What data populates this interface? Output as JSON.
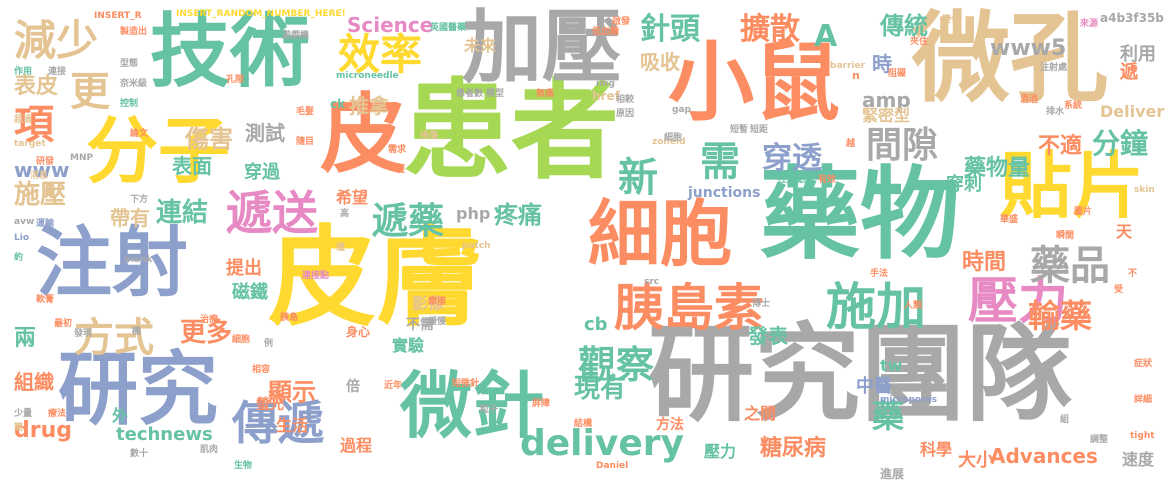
{
  "palette": {
    "gray": "#a8a8a8",
    "yellow": "#ffd92f",
    "green": "#a6d854",
    "orange": "#fc8d62",
    "blue": "#8da0cb",
    "teal": "#66c2a5",
    "tan": "#e5c494",
    "pink": "#e78ac3"
  },
  "words": [
    {
      "text": "皮膚",
      "color": "yellow"
    },
    {
      "text": "患者",
      "color": "green"
    },
    {
      "text": "研究團隊",
      "color": "gray"
    },
    {
      "text": "微孔",
      "color": "tan"
    },
    {
      "text": "藥物",
      "color": "teal"
    },
    {
      "text": "加壓",
      "color": "gray"
    },
    {
      "text": "小鼠",
      "color": "orange"
    },
    {
      "text": "技術",
      "color": "teal"
    },
    {
      "text": "研究",
      "color": "blue"
    },
    {
      "text": "細胞",
      "color": "orange"
    },
    {
      "text": "微針",
      "color": "teal"
    },
    {
      "text": "注射",
      "color": "blue"
    },
    {
      "text": "皮",
      "color": "orange"
    },
    {
      "text": "分子",
      "color": "yellow"
    },
    {
      "text": "貼片",
      "color": "yellow"
    },
    {
      "text": "胰島素",
      "color": "orange"
    },
    {
      "text": "施加",
      "color": "teal"
    },
    {
      "text": "壓力",
      "color": "pink"
    },
    {
      "text": "減少",
      "color": "tan"
    },
    {
      "text": "效率",
      "color": "yellow"
    },
    {
      "text": "遞送",
      "color": "pink"
    },
    {
      "text": "傳遞",
      "color": "blue"
    },
    {
      "text": "delivery",
      "color": "teal"
    },
    {
      "text": "新",
      "color": "teal"
    },
    {
      "text": "需",
      "color": "teal"
    },
    {
      "text": "藥品",
      "color": "gray"
    },
    {
      "text": "方式",
      "color": "tan"
    },
    {
      "text": "間隙",
      "color": "gray"
    },
    {
      "text": "觀察",
      "color": "teal"
    },
    {
      "text": "遞藥",
      "color": "teal"
    },
    {
      "text": "更",
      "color": "tan"
    },
    {
      "text": "項",
      "color": "orange"
    },
    {
      "text": "輸藥",
      "color": "orange"
    },
    {
      "text": "針頭",
      "color": "teal"
    },
    {
      "text": "擴散",
      "color": "orange"
    },
    {
      "text": "A",
      "color": "teal"
    },
    {
      "text": "穿透",
      "color": "blue"
    },
    {
      "text": "分鐘",
      "color": "teal"
    },
    {
      "text": "連結",
      "color": "teal"
    },
    {
      "text": "傷害",
      "color": "tan"
    },
    {
      "text": "更多",
      "color": "orange"
    },
    {
      "text": "施壓",
      "color": "tan"
    },
    {
      "text": "表面",
      "color": "teal"
    },
    {
      "text": "測試",
      "color": "gray"
    },
    {
      "text": "疼痛",
      "color": "teal"
    },
    {
      "text": "顯示",
      "color": "orange"
    },
    {
      "text": "現有",
      "color": "teal"
    },
    {
      "text": "藥",
      "color": "teal"
    },
    {
      "text": "時間",
      "color": "orange"
    },
    {
      "text": "藥物量",
      "color": "teal"
    },
    {
      "text": "不適",
      "color": "orange"
    },
    {
      "text": "傳統",
      "color": "teal"
    },
    {
      "text": "www5",
      "color": "gray"
    },
    {
      "text": "Science",
      "color": "pink"
    },
    {
      "text": "推拿",
      "color": "tan"
    },
    {
      "text": "表皮",
      "color": "tan"
    },
    {
      "text": "兩",
      "color": "teal"
    },
    {
      "text": "www",
      "color": "blue"
    },
    {
      "text": "drug",
      "color": "orange"
    },
    {
      "text": "technews",
      "color": "teal"
    },
    {
      "text": "Advances",
      "color": "orange"
    },
    {
      "text": "糖尿病",
      "color": "orange"
    },
    {
      "text": "組織",
      "color": "orange"
    },
    {
      "text": "吸收",
      "color": "tan"
    },
    {
      "text": "amp",
      "color": "gray"
    },
    {
      "text": "時",
      "color": "blue"
    },
    {
      "text": "緊密型",
      "color": "tan"
    },
    {
      "text": "利用",
      "color": "gray"
    },
    {
      "text": "Deliver",
      "color": "tan"
    },
    {
      "text": "遞",
      "color": "orange"
    },
    {
      "text": "穿刺",
      "color": "teal"
    },
    {
      "text": "未來",
      "color": "tan"
    },
    {
      "text": "穿過",
      "color": "teal"
    },
    {
      "text": "帶有",
      "color": "tan"
    },
    {
      "text": "希望",
      "color": "orange"
    },
    {
      "text": "php",
      "color": "gray"
    },
    {
      "text": "提出",
      "color": "orange"
    },
    {
      "text": "磁鐵",
      "color": "teal"
    },
    {
      "text": "影像",
      "color": "tan"
    },
    {
      "text": "不需",
      "color": "gray"
    },
    {
      "text": "cb",
      "color": "teal"
    },
    {
      "text": "實驗",
      "color": "teal"
    },
    {
      "text": "發表",
      "color": "teal"
    },
    {
      "text": "tw",
      "color": "teal"
    },
    {
      "text": "中醫",
      "color": "blue"
    },
    {
      "text": "天",
      "color": "orange"
    },
    {
      "text": "速度",
      "color": "gray"
    },
    {
      "text": "大小",
      "color": "orange"
    },
    {
      "text": "科學",
      "color": "orange"
    },
    {
      "text": "壓力",
      "color": "teal"
    },
    {
      "text": "進展",
      "color": "gray"
    },
    {
      "text": "之間",
      "color": "orange"
    },
    {
      "text": "方法",
      "color": "orange"
    },
    {
      "text": "過程",
      "color": "orange"
    },
    {
      "text": "生活",
      "color": "orange"
    },
    {
      "text": "螢光",
      "color": "orange"
    },
    {
      "text": "倍",
      "color": "gray"
    },
    {
      "text": "外",
      "color": "teal"
    },
    {
      "text": "junctions",
      "color": "blue"
    },
    {
      "text": "href",
      "color": "tan"
    },
    {
      "text": "ck",
      "color": "teal"
    },
    {
      "text": "INSERT_RANDOM_NUMBER_HERE!",
      "color": "yellow"
    },
    {
      "text": "INSERT_R",
      "color": "orange"
    },
    {
      "text": "a4b3f35b",
      "color": "gray"
    },
    {
      "text": "microneedle",
      "color": "teal"
    },
    {
      "text": "micropores",
      "color": "blue"
    },
    {
      "text": "barrier",
      "color": "tan"
    },
    {
      "text": "target",
      "color": "tan"
    },
    {
      "text": "MNP",
      "color": "gray"
    },
    {
      "text": "avw",
      "color": "gray"
    },
    {
      "text": "Lio",
      "color": "blue"
    },
    {
      "text": "_blank",
      "color": "gray"
    },
    {
      "text": "skin",
      "color": "tan"
    },
    {
      "text": "tight",
      "color": "orange"
    },
    {
      "text": "patch",
      "color": "tan"
    },
    {
      "text": "src",
      "color": "gray"
    },
    {
      "text": "zoneid",
      "color": "tan"
    },
    {
      "text": "gap",
      "color": "gray"
    },
    {
      "text": "img",
      "color": "gray"
    },
    {
      "text": "Daniel",
      "color": "orange"
    },
    {
      "text": "身心",
      "color": "orange"
    },
    {
      "text": "n",
      "color": "orange"
    },
    {
      "text": "製造出",
      "color": "orange"
    },
    {
      "text": "遊戲機",
      "color": "gray"
    },
    {
      "text": "作用",
      "color": "teal"
    },
    {
      "text": "連接",
      "color": "gray"
    },
    {
      "text": "控制",
      "color": "teal"
    },
    {
      "text": "型態",
      "color": "gray"
    },
    {
      "text": "奈米級",
      "color": "gray"
    },
    {
      "text": "毛髮",
      "color": "orange"
    },
    {
      "text": "孔隙",
      "color": "orange"
    },
    {
      "text": "論文",
      "color": "orange"
    },
    {
      "text": "超過",
      "color": "tan"
    },
    {
      "text": "研發",
      "color": "orange"
    },
    {
      "text": "消息",
      "color": "tan"
    },
    {
      "text": "下方",
      "color": "gray"
    },
    {
      "text": "運輸",
      "color": "blue"
    },
    {
      "text": "約",
      "color": "teal"
    },
    {
      "text": "變化",
      "color": "tan"
    },
    {
      "text": "來源",
      "color": "pink"
    },
    {
      "text": "注射處",
      "color": "gray"
    },
    {
      "text": "阻礙",
      "color": "orange"
    },
    {
      "text": "系統",
      "color": "orange"
    },
    {
      "text": "酒酒",
      "color": "orange"
    },
    {
      "text": "排水",
      "color": "gray"
    },
    {
      "text": "夾住",
      "color": "orange"
    },
    {
      "text": "英國醫藥",
      "color": "teal"
    },
    {
      "text": "低血糖",
      "color": "orange"
    },
    {
      "text": "啟發",
      "color": "orange"
    },
    {
      "text": "模型",
      "color": "gray"
    },
    {
      "text": "患者數",
      "color": "gray"
    },
    {
      "text": "無痛",
      "color": "orange"
    },
    {
      "text": "相較",
      "color": "gray"
    },
    {
      "text": "原因",
      "color": "gray"
    },
    {
      "text": "細胞",
      "color": "gray"
    },
    {
      "text": "短暫",
      "color": "gray"
    },
    {
      "text": "短距",
      "color": "gray"
    },
    {
      "text": "越",
      "color": "orange"
    },
    {
      "text": "控制點",
      "color": "teal"
    },
    {
      "text": "有效",
      "color": "orange"
    },
    {
      "text": "連接點",
      "color": "pink"
    },
    {
      "text": "高",
      "color": "gray"
    },
    {
      "text": "僅",
      "color": "tan"
    },
    {
      "text": "摩擦",
      "color": "orange"
    },
    {
      "text": "緩慢",
      "color": "gray"
    },
    {
      "text": "博士",
      "color": "gray"
    },
    {
      "text": "手法",
      "color": "orange"
    },
    {
      "text": "人類",
      "color": "orange"
    },
    {
      "text": "華盛",
      "color": "orange"
    },
    {
      "text": "圖片",
      "color": "orange"
    },
    {
      "text": "瞬間",
      "color": "orange"
    },
    {
      "text": "胰島",
      "color": "orange"
    },
    {
      "text": "細胞",
      "color": "orange"
    },
    {
      "text": "治療",
      "color": "orange"
    },
    {
      "text": "軟膏",
      "color": "orange"
    },
    {
      "text": "最初",
      "color": "orange"
    },
    {
      "text": "發現",
      "color": "gray"
    },
    {
      "text": "機",
      "color": "gray"
    },
    {
      "text": "例",
      "color": "gray"
    },
    {
      "text": "相容",
      "color": "orange"
    },
    {
      "text": "近年",
      "color": "orange"
    },
    {
      "text": "短微針",
      "color": "orange"
    },
    {
      "text": "粒子",
      "color": "gray"
    },
    {
      "text": "療法",
      "color": "orange"
    },
    {
      "text": "少量",
      "color": "gray"
    },
    {
      "text": "簡",
      "color": "tan"
    },
    {
      "text": "數十",
      "color": "gray"
    },
    {
      "text": "肌肉",
      "color": "gray"
    },
    {
      "text": "生物",
      "color": "teal"
    },
    {
      "text": "屏障",
      "color": "orange"
    },
    {
      "text": "結構",
      "color": "orange"
    },
    {
      "text": "組",
      "color": "gray"
    },
    {
      "text": "調整",
      "color": "gray"
    },
    {
      "text": "症狀",
      "color": "orange"
    },
    {
      "text": "詳細",
      "color": "orange"
    },
    {
      "text": "隨目",
      "color": "orange"
    },
    {
      "text": "需求",
      "color": "orange"
    },
    {
      "text": "養",
      "color": "orange"
    },
    {
      "text": "損傷",
      "color": "tan"
    },
    {
      "text": "不",
      "color": "orange"
    },
    {
      "text": "受",
      "color": "orange"
    }
  ]
}
